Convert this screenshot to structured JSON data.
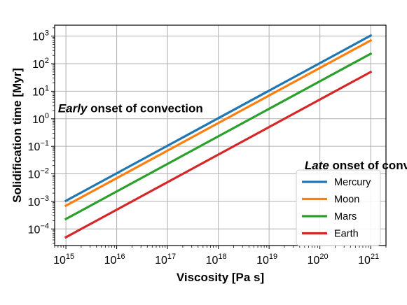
{
  "chart_data": {
    "type": "line",
    "x_scale": "log",
    "y_scale": "log",
    "xlabel": "Viscosity [Pa s]",
    "ylabel": "Solidification time [Myr]",
    "xlim": [
      600000000000000.0,
      2e+21
    ],
    "ylim": [
      2.5e-05,
      2500
    ],
    "x_ticks": [
      {
        "value": 1000000000000000.0,
        "label": "10",
        "exp": "15"
      },
      {
        "value": 1e+16,
        "label": "10",
        "exp": "16"
      },
      {
        "value": 1e+17,
        "label": "10",
        "exp": "17"
      },
      {
        "value": 1e+18,
        "label": "10",
        "exp": "18"
      },
      {
        "value": 1e+19,
        "label": "10",
        "exp": "19"
      },
      {
        "value": 1e+20,
        "label": "10",
        "exp": "20"
      },
      {
        "value": 1e+21,
        "label": "10",
        "exp": "21"
      }
    ],
    "y_ticks": [
      {
        "value": 0.0001,
        "label": "10",
        "exp": "−4"
      },
      {
        "value": 0.001,
        "label": "10",
        "exp": "−3"
      },
      {
        "value": 0.01,
        "label": "10",
        "exp": "−2"
      },
      {
        "value": 0.1,
        "label": "10",
        "exp": "−1"
      },
      {
        "value": 1,
        "label": "10",
        "exp": "0"
      },
      {
        "value": 10,
        "label": "10",
        "exp": "1"
      },
      {
        "value": 100,
        "label": "10",
        "exp": "2"
      },
      {
        "value": 1000,
        "label": "10",
        "exp": "3"
      }
    ],
    "grid": true,
    "legend_position": "bottom-right",
    "series": [
      {
        "name": "Mercury",
        "color": "#1f77b4",
        "x": [
          1000000000000000.0,
          1e+21
        ],
        "y": [
          0.00105,
          1050
        ]
      },
      {
        "name": "Moon",
        "color": "#ff7f0e",
        "x": [
          1000000000000000.0,
          1e+21
        ],
        "y": [
          0.0007,
          700
        ]
      },
      {
        "name": "Mars",
        "color": "#2ca02c",
        "x": [
          1000000000000000.0,
          1e+21
        ],
        "y": [
          0.00023,
          230
        ]
      },
      {
        "name": "Earth",
        "color": "#d62728",
        "x": [
          1000000000000000.0,
          1e+21
        ],
        "y": [
          5e-05,
          50
        ]
      }
    ],
    "annotations": [
      {
        "italic": "Early",
        "text": " onset of convection",
        "x": 700000000000000.0,
        "y": 1.7
      },
      {
        "italic": "Late",
        "text": " onset of convection",
        "x": 5e+19,
        "y": 0.0145
      }
    ]
  }
}
